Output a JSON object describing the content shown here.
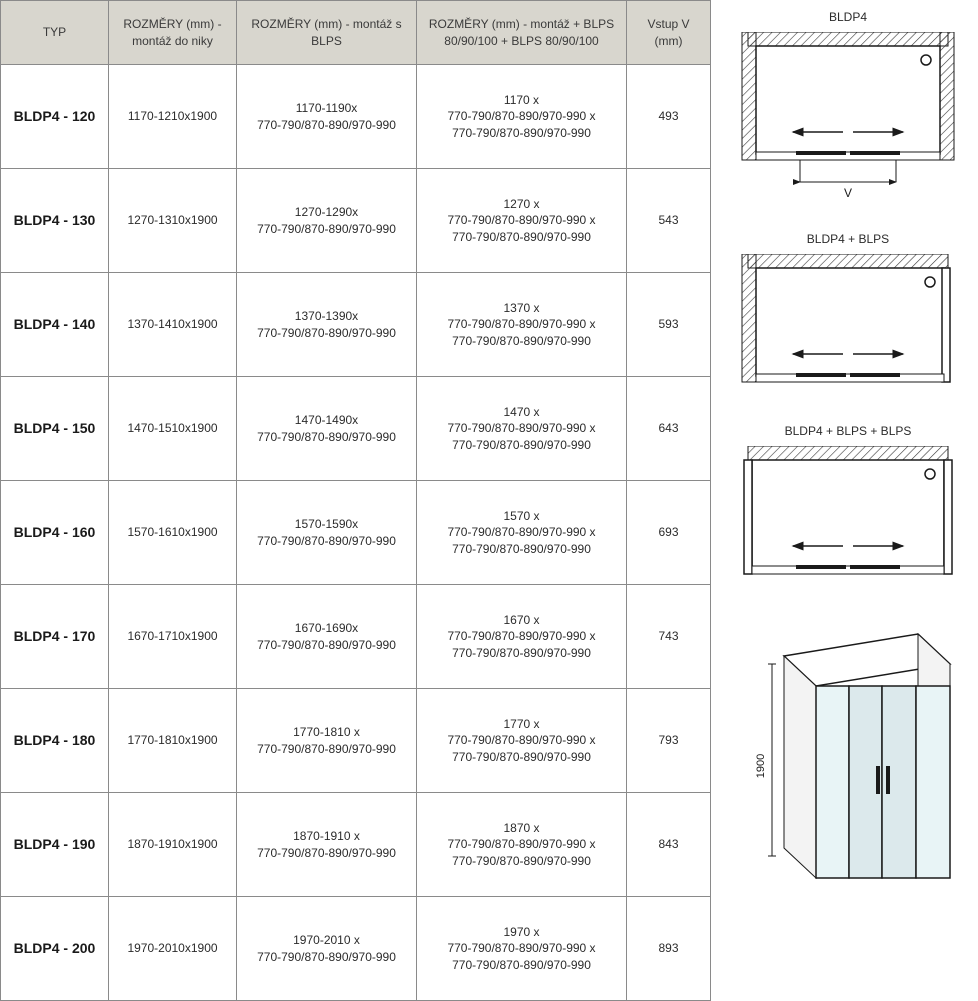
{
  "table": {
    "headers": {
      "typ": "TYP",
      "niky": "ROZMĚRY (mm) - montáž do niky",
      "blps": "ROZMĚRY (mm) - montáž s BLPS",
      "blps2": "ROZMĚRY (mm) - montáž + BLPS 80/90/100 + BLPS 80/90/100",
      "vstup": "Vstup V (mm)"
    },
    "rows": [
      {
        "typ": "BLDP4 - 120",
        "niky": "1170-1210x1900",
        "blps_a": "1170-1190x",
        "blps_b": "770-790/870-890/970-990",
        "blps2_a": "1170 x",
        "blps2_b": "770-790/870-890/970-990 x",
        "blps2_c": "770-790/870-890/970-990",
        "vstup": "493"
      },
      {
        "typ": "BLDP4 - 130",
        "niky": "1270-1310x1900",
        "blps_a": "1270-1290x",
        "blps_b": "770-790/870-890/970-990",
        "blps2_a": "1270 x",
        "blps2_b": "770-790/870-890/970-990 x",
        "blps2_c": "770-790/870-890/970-990",
        "vstup": "543"
      },
      {
        "typ": "BLDP4 - 140",
        "niky": "1370-1410x1900",
        "blps_a": "1370-1390x",
        "blps_b": "770-790/870-890/970-990",
        "blps2_a": "1370 x",
        "blps2_b": "770-790/870-890/970-990 x",
        "blps2_c": "770-790/870-890/970-990",
        "vstup": "593"
      },
      {
        "typ": "BLDP4 - 150",
        "niky": "1470-1510x1900",
        "blps_a": "1470-1490x",
        "blps_b": "770-790/870-890/970-990",
        "blps2_a": "1470 x",
        "blps2_b": "770-790/870-890/970-990 x",
        "blps2_c": "770-790/870-890/970-990",
        "vstup": "643"
      },
      {
        "typ": "BLDP4 - 160",
        "niky": "1570-1610x1900",
        "blps_a": "1570-1590x",
        "blps_b": "770-790/870-890/970-990",
        "blps2_a": "1570 x",
        "blps2_b": "770-790/870-890/970-990 x",
        "blps2_c": "770-790/870-890/970-990",
        "vstup": "693"
      },
      {
        "typ": "BLDP4 - 170",
        "niky": "1670-1710x1900",
        "blps_a": "1670-1690x",
        "blps_b": "770-790/870-890/970-990",
        "blps2_a": "1670 x",
        "blps2_b": "770-790/870-890/970-990 x",
        "blps2_c": "770-790/870-890/970-990",
        "vstup": "743"
      },
      {
        "typ": "BLDP4 - 180",
        "niky": "1770-1810x1900",
        "blps_a": "1770-1810 x",
        "blps_b": "770-790/870-890/970-990",
        "blps2_a": "1770 x",
        "blps2_b": "770-790/870-890/970-990 x",
        "blps2_c": "770-790/870-890/970-990",
        "vstup": "793"
      },
      {
        "typ": "BLDP4 - 190",
        "niky": "1870-1910x1900",
        "blps_a": "1870-1910 x",
        "blps_b": "770-790/870-890/970-990",
        "blps2_a": "1870 x",
        "blps2_b": "770-790/870-890/970-990 x",
        "blps2_c": "770-790/870-890/970-990",
        "vstup": "843"
      },
      {
        "typ": "BLDP4 - 200",
        "niky": "1970-2010x1900",
        "blps_a": "1970-2010 x",
        "blps_b": "770-790/870-890/970-990",
        "blps2_a": "1970 x",
        "blps2_b": "770-790/870-890/970-990 x",
        "blps2_c": "770-790/870-890/970-990",
        "vstup": "893"
      }
    ]
  },
  "diagrams": {
    "title1": "BLDP4",
    "title2": "BLDP4 + BLPS",
    "title3": "BLDP4 + BLPS + BLPS",
    "v_label": "V",
    "height_label": "1900",
    "stroke": "#1a1a1a",
    "hatch": "#3a3a3a"
  }
}
